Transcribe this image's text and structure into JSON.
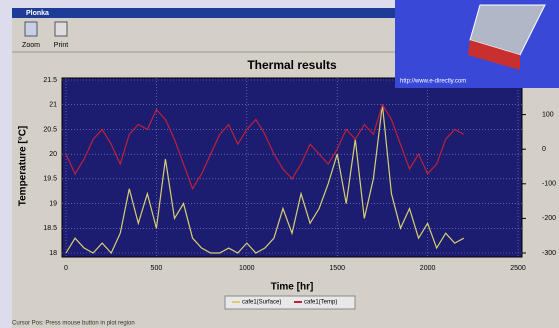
{
  "window": {
    "title": "Plonka",
    "toolbar": [
      "Zoom",
      "Print"
    ],
    "status": "Cursor Pos: Press mouse button in plot region",
    "overlay_url": "http://www.e-directly.com"
  },
  "chart_data": {
    "type": "line",
    "title": "Thermal results",
    "x_label": "Time [hr]",
    "y_label": "Temperature [°C]",
    "x": [
      0,
      50,
      100,
      150,
      200,
      250,
      300,
      350,
      400,
      450,
      500,
      550,
      600,
      650,
      700,
      750,
      800,
      850,
      900,
      950,
      1000,
      1050,
      1100,
      1150,
      1200,
      1250,
      1300,
      1350,
      1400,
      1450,
      1500,
      1550,
      1600,
      1650,
      1700,
      1750,
      1800,
      1850,
      1900,
      1950,
      2000,
      2050,
      2100,
      2150,
      2200
    ],
    "series": [
      {
        "name": "cafe1(Surface)",
        "color": "#d8d070",
        "values": [
          18.0,
          18.3,
          18.1,
          18.0,
          18.2,
          18.0,
          18.4,
          19.3,
          18.6,
          19.2,
          18.5,
          19.9,
          18.7,
          19.0,
          18.3,
          18.1,
          18.0,
          18.0,
          18.1,
          18.0,
          18.2,
          18.0,
          18.1,
          18.3,
          18.9,
          18.4,
          19.2,
          18.6,
          18.9,
          19.4,
          20.0,
          19.0,
          20.3,
          18.7,
          19.5,
          21.0,
          19.2,
          18.5,
          18.9,
          18.3,
          18.6,
          18.1,
          18.4,
          18.2,
          18.3
        ]
      },
      {
        "name": "cafe1(Temp)",
        "color": "#c0203a",
        "values": [
          20.0,
          19.6,
          19.9,
          20.3,
          20.5,
          20.2,
          19.8,
          20.4,
          20.6,
          20.5,
          20.9,
          20.7,
          20.3,
          19.8,
          19.3,
          19.6,
          20.0,
          20.4,
          20.6,
          20.2,
          20.5,
          20.7,
          20.4,
          20.0,
          19.7,
          19.5,
          19.8,
          20.2,
          20.0,
          19.8,
          20.1,
          20.5,
          20.3,
          20.6,
          20.4,
          21.0,
          20.7,
          20.2,
          19.7,
          20.0,
          19.6,
          19.8,
          20.3,
          20.5,
          20.4
        ]
      }
    ],
    "xlim": [
      0,
      2500
    ],
    "xticks": [
      0,
      500,
      1000,
      1500,
      2000,
      2500
    ],
    "ylim": [
      18,
      21.5
    ],
    "yticks": [
      18,
      18.5,
      19,
      19.5,
      20,
      20.5,
      21,
      21.5
    ],
    "y2lim": [
      -300,
      200
    ],
    "y2ticks": [
      -300,
      -200,
      -100,
      0,
      100
    ],
    "grid": true
  }
}
